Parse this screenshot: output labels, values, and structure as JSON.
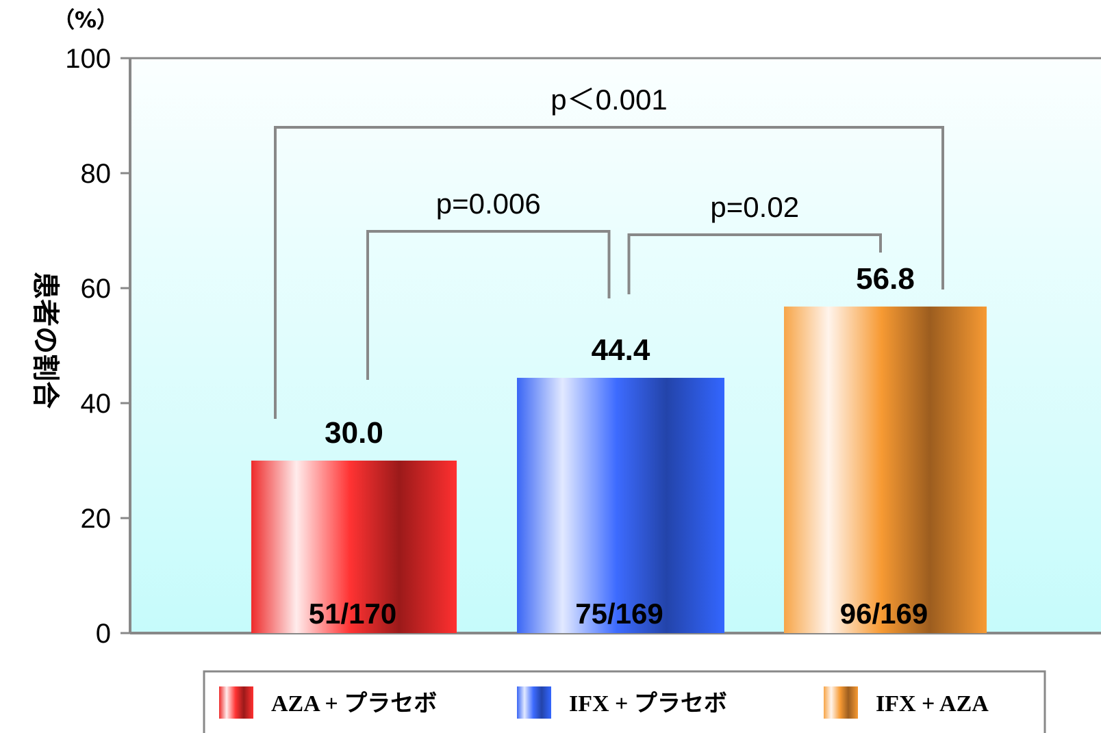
{
  "chart_data": {
    "type": "bar",
    "unit_label": "（%）",
    "ylabel": "患者の割合",
    "ylim": [
      0,
      100
    ],
    "yticks": [
      0,
      20,
      40,
      60,
      80,
      100
    ],
    "grid": false,
    "legend_position": "bottom",
    "categories": [
      "AZA + プラセボ",
      "IFX + プラセボ",
      "IFX + AZA"
    ],
    "values": [
      30.0,
      44.4,
      56.8
    ],
    "value_labels": [
      "30.0",
      "44.4",
      "56.8"
    ],
    "counts": [
      "51/170",
      "75/169",
      "96/169"
    ],
    "colors": [
      "#ff3333",
      "#3366ff",
      "#f79a33"
    ],
    "comparisons": [
      {
        "from": 0,
        "to": 2,
        "label": "p＜0.001"
      },
      {
        "from": 0,
        "to": 1,
        "label": "p=0.006"
      },
      {
        "from": 1,
        "to": 2,
        "label": "p=0.02"
      }
    ]
  }
}
